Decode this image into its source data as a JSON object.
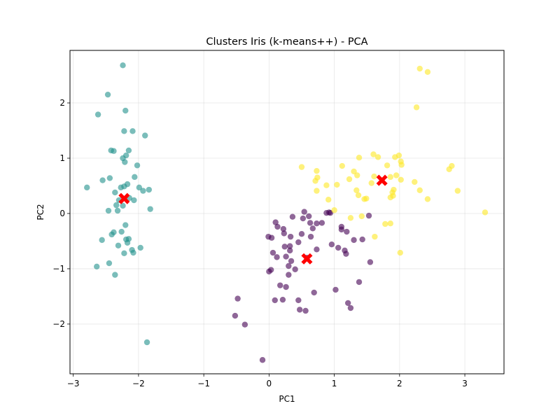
{
  "chart_data": {
    "type": "scatter",
    "title": "Clusters Iris (k-means++) - PCA",
    "xlabel": "PC1",
    "ylabel": "PC2",
    "xlim": [
      -3.05,
      3.6
    ],
    "ylim": [
      -2.9,
      2.95
    ],
    "xticks": [
      -3,
      -2,
      -1,
      0,
      1,
      2,
      3
    ],
    "yticks": [
      -2,
      -1,
      0,
      1,
      2
    ],
    "grid": true,
    "series": [
      {
        "color": "#440154",
        "points": [
          [
            -0.1,
            -2.65
          ],
          [
            -0.48,
            -1.54
          ],
          [
            -0.52,
            -1.85
          ],
          [
            -0.37,
            -2.01
          ],
          [
            0.0,
            -1.05
          ],
          [
            0.03,
            -1.02
          ],
          [
            0.09,
            -1.57
          ],
          [
            0.21,
            -1.56
          ],
          [
            0.17,
            -1.3
          ],
          [
            0.26,
            -1.33
          ],
          [
            0.3,
            -1.11
          ],
          [
            0.34,
            -0.86
          ],
          [
            0.45,
            -1.57
          ],
          [
            0.47,
            -1.74
          ],
          [
            0.56,
            -1.76
          ],
          [
            0.58,
            -0.8
          ],
          [
            0.69,
            -1.43
          ],
          [
            1.02,
            -1.38
          ],
          [
            1.21,
            -1.62
          ],
          [
            1.25,
            -1.71
          ],
          [
            1.38,
            -1.24
          ],
          [
            1.55,
            -0.88
          ],
          [
            1.43,
            -0.47
          ],
          [
            1.53,
            -0.04
          ],
          [
            1.19,
            -0.33
          ],
          [
            1.18,
            -0.73
          ],
          [
            1.11,
            -0.29
          ],
          [
            1.06,
            -0.62
          ],
          [
            0.96,
            -0.56
          ],
          [
            0.88,
            0.01
          ],
          [
            0.81,
            -0.17
          ],
          [
            0.73,
            -0.18
          ],
          [
            0.67,
            -0.27
          ],
          [
            0.64,
            -0.42
          ],
          [
            0.61,
            -0.05
          ],
          [
            0.5,
            -0.37
          ],
          [
            0.45,
            -0.52
          ],
          [
            0.36,
            -0.06
          ],
          [
            0.33,
            -0.42
          ],
          [
            0.32,
            -0.59
          ],
          [
            0.26,
            -0.78
          ],
          [
            0.23,
            -0.36
          ],
          [
            0.12,
            -0.79
          ],
          [
            0.06,
            -0.71
          ],
          [
            -0.01,
            -0.42
          ],
          [
            0.1,
            -0.16
          ],
          [
            0.13,
            -0.24
          ],
          [
            0.22,
            -0.28
          ],
          [
            0.32,
            -0.67
          ],
          [
            0.54,
            0.03
          ],
          [
            0.92,
            0.02
          ],
          [
            0.94,
            0.01
          ],
          [
            1.11,
            -0.24
          ],
          [
            1.16,
            -0.67
          ],
          [
            1.3,
            -0.48
          ],
          [
            0.52,
            -0.09
          ],
          [
            0.3,
            -0.95
          ],
          [
            0.4,
            -1.01
          ],
          [
            0.63,
            -0.17
          ],
          [
            0.24,
            -0.6
          ],
          [
            0.04,
            -0.44
          ],
          [
            0.73,
            -0.65
          ]
        ]
      },
      {
        "color": "#21918c",
        "points": [
          [
            -2.24,
            2.68
          ],
          [
            -2.47,
            2.15
          ],
          [
            -2.62,
            1.79
          ],
          [
            -2.2,
            1.86
          ],
          [
            -2.22,
            1.49
          ],
          [
            -2.09,
            1.49
          ],
          [
            -1.9,
            1.41
          ],
          [
            -2.42,
            1.14
          ],
          [
            -2.38,
            1.13
          ],
          [
            -2.15,
            1.14
          ],
          [
            -2.19,
            1.05
          ],
          [
            -2.24,
            1.0
          ],
          [
            -2.21,
            0.93
          ],
          [
            -2.02,
            0.87
          ],
          [
            -2.44,
            0.64
          ],
          [
            -2.55,
            0.6
          ],
          [
            -2.27,
            0.47
          ],
          [
            -2.22,
            0.49
          ],
          [
            -2.17,
            0.53
          ],
          [
            -2.06,
            0.66
          ],
          [
            -1.99,
            0.47
          ],
          [
            -1.93,
            0.41
          ],
          [
            -1.84,
            0.43
          ],
          [
            -2.79,
            0.47
          ],
          [
            -2.36,
            0.38
          ],
          [
            -2.14,
            0.28
          ],
          [
            -2.3,
            0.24
          ],
          [
            -2.24,
            0.14
          ],
          [
            -2.07,
            0.24
          ],
          [
            -2.34,
            0.15
          ],
          [
            -2.46,
            0.05
          ],
          [
            -2.32,
            0.05
          ],
          [
            -1.82,
            0.08
          ],
          [
            -2.2,
            -0.21
          ],
          [
            -2.38,
            -0.34
          ],
          [
            -2.41,
            -0.38
          ],
          [
            -2.26,
            -0.33
          ],
          [
            -2.19,
            -0.47
          ],
          [
            -2.15,
            -0.46
          ],
          [
            -2.17,
            -0.53
          ],
          [
            -2.56,
            -0.48
          ],
          [
            -2.31,
            -0.58
          ],
          [
            -1.97,
            -0.62
          ],
          [
            -2.1,
            -0.66
          ],
          [
            -2.22,
            -0.72
          ],
          [
            -2.08,
            -0.71
          ],
          [
            -2.45,
            -0.9
          ],
          [
            -2.64,
            -0.96
          ],
          [
            -2.36,
            -1.11
          ],
          [
            -1.87,
            -2.33
          ]
        ]
      },
      {
        "color": "#fde725",
        "points": [
          [
            2.31,
            2.62
          ],
          [
            2.43,
            2.56
          ],
          [
            2.26,
            1.92
          ],
          [
            1.6,
            1.07
          ],
          [
            1.99,
            1.05
          ],
          [
            1.93,
            1.02
          ],
          [
            1.67,
            1.02
          ],
          [
            1.38,
            1.01
          ],
          [
            1.81,
            0.87
          ],
          [
            2.02,
            0.94
          ],
          [
            2.03,
            0.88
          ],
          [
            2.8,
            0.86
          ],
          [
            2.76,
            0.8
          ],
          [
            1.12,
            0.86
          ],
          [
            0.5,
            0.84
          ],
          [
            0.73,
            0.77
          ],
          [
            1.3,
            0.76
          ],
          [
            1.35,
            0.69
          ],
          [
            1.95,
            0.69
          ],
          [
            1.61,
            0.67
          ],
          [
            1.86,
            0.66
          ],
          [
            2.02,
            0.61
          ],
          [
            2.23,
            0.57
          ],
          [
            1.57,
            0.55
          ],
          [
            1.23,
            0.62
          ],
          [
            0.88,
            0.51
          ],
          [
            1.04,
            0.52
          ],
          [
            0.71,
            0.59
          ],
          [
            0.73,
            0.41
          ],
          [
            1.34,
            0.42
          ],
          [
            1.91,
            0.43
          ],
          [
            1.89,
            0.38
          ],
          [
            2.31,
            0.42
          ],
          [
            2.89,
            0.41
          ],
          [
            1.37,
            0.33
          ],
          [
            0.91,
            0.25
          ],
          [
            1.46,
            0.26
          ],
          [
            1.49,
            0.27
          ],
          [
            2.43,
            0.26
          ],
          [
            1.9,
            0.32
          ],
          [
            1.86,
            0.29
          ],
          [
            1.0,
            0.06
          ],
          [
            1.25,
            -0.08
          ],
          [
            1.42,
            -0.05
          ],
          [
            1.78,
            -0.19
          ],
          [
            1.86,
            -0.18
          ],
          [
            1.62,
            -0.42
          ],
          [
            2.01,
            -0.71
          ],
          [
            3.31,
            0.02
          ],
          [
            0.74,
            0.65
          ]
        ]
      }
    ],
    "centroids": {
      "color": "#ff0000",
      "marker": "X",
      "points": [
        [
          -2.22,
          0.27
        ],
        [
          0.58,
          -0.82
        ],
        [
          1.73,
          0.6
        ]
      ]
    }
  }
}
